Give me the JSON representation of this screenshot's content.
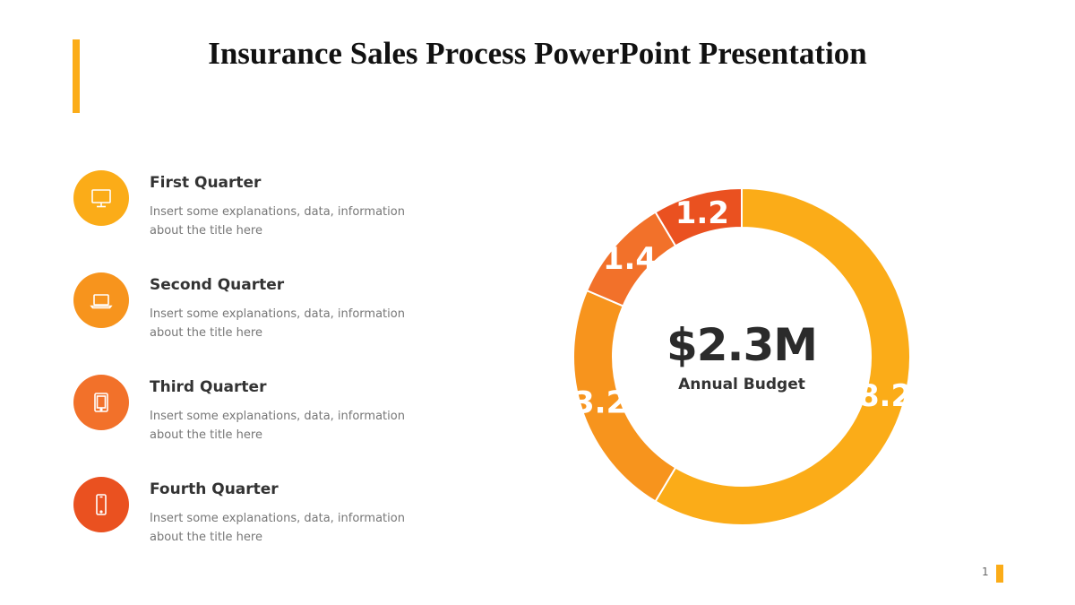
{
  "title": "Insurance Sales Process PowerPoint Presentation",
  "colors": {
    "accent": "#fbac18",
    "item_circles": [
      "#fbac18",
      "#f7941d",
      "#f2712a",
      "#ea5120"
    ]
  },
  "items": [
    {
      "heading": "First Quarter",
      "description": "Insert some explanations, data, information about the title here",
      "icon": "monitor-icon"
    },
    {
      "heading": "Second Quarter",
      "description": "Insert some explanations, data, information about the title here",
      "icon": "laptop-icon"
    },
    {
      "heading": "Third Quarter",
      "description": "Insert some explanations, data, information about the title here",
      "icon": "tablet-icon"
    },
    {
      "heading": "Fourth Quarter",
      "description": "Insert some explanations, data, information about the title here",
      "icon": "smartphone-icon"
    }
  ],
  "chart_data": {
    "type": "pie",
    "center_value": "$2.3M",
    "center_label": "Annual Budget",
    "categories": [
      "First Quarter",
      "Second Quarter",
      "Third Quarter",
      "Fourth Quarter"
    ],
    "values": [
      8.2,
      3.2,
      1.4,
      1.2
    ],
    "data_labels": [
      "8.2",
      "3.2",
      "1.4",
      "1.2"
    ],
    "colors": [
      "#fbac18",
      "#f7941d",
      "#f2712a",
      "#ea5120"
    ]
  },
  "page_number": "1"
}
